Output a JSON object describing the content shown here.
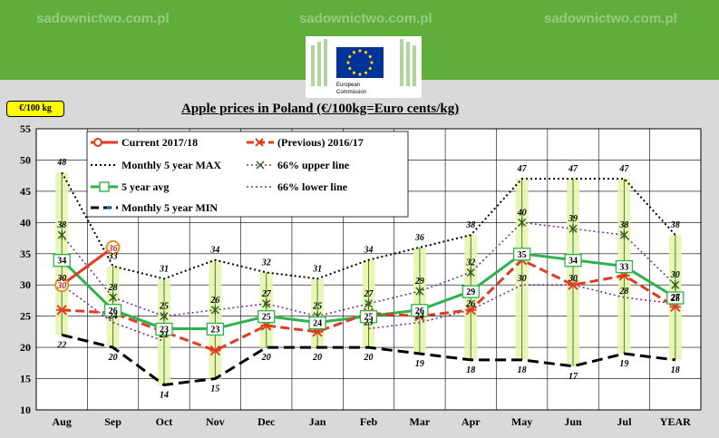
{
  "header": {
    "watermarks": [
      "sadownictwo.com.pl",
      "sadownictwo.com.pl",
      "sadownictwo.com.pl"
    ],
    "logo_text": [
      "European",
      "Commission"
    ],
    "colors": {
      "bar": "#5fae3b",
      "eu_blue": "#003399",
      "eu_star": "#ffcc00"
    }
  },
  "unit_label": "€/100 kg",
  "chart_data": {
    "type": "line",
    "title": "Apple prices in Poland (€/100kg=Euro cents/kg)",
    "categories": [
      "Aug",
      "Sep",
      "Oct",
      "Nov",
      "Dec",
      "Jan",
      "Feb",
      "Mar",
      "Apr",
      "May",
      "Jun",
      "Jul",
      "YEAR"
    ],
    "ylim": [
      10,
      55
    ],
    "yticks": [
      10,
      15,
      20,
      25,
      30,
      35,
      40,
      45,
      50,
      55
    ],
    "grid": true,
    "legend_position": "top-left",
    "series": [
      {
        "name": "Current 2017/18",
        "color": "#e03c22",
        "values": [
          30,
          36,
          null,
          null,
          null,
          null,
          null,
          null,
          null,
          null,
          null,
          null,
          null
        ],
        "labels": [
          "30",
          "36"
        ]
      },
      {
        "name": "(Previous) 2016/17",
        "color": "#e03c22",
        "values": [
          26,
          25.5,
          22.5,
          19.5,
          23.5,
          22.5,
          25.5,
          25,
          26,
          34,
          30,
          31.5,
          26.5
        ]
      },
      {
        "name": "Monthly 5 year MAX",
        "color": "#000000",
        "values": [
          48,
          33,
          31,
          34,
          32,
          31,
          34,
          36,
          38,
          47,
          47,
          47,
          38
        ],
        "labels": [
          "48",
          "33",
          "31",
          "34",
          "32",
          "31",
          "34",
          "36",
          "38",
          "47",
          "47",
          "47",
          "38"
        ]
      },
      {
        "name": "66% upper line",
        "color": "#7030a0",
        "values": [
          38,
          28,
          25,
          26,
          27,
          25,
          27,
          29,
          32,
          40,
          39,
          38,
          30
        ],
        "labels": [
          "38",
          "28",
          "25",
          "26",
          "27",
          "25",
          "27",
          "29",
          "32",
          "40",
          "39",
          "38",
          "30"
        ]
      },
      {
        "name": "5 year avg",
        "color": "#2db34a",
        "values": [
          34,
          26,
          23,
          23,
          25,
          24,
          25,
          26,
          29,
          35,
          34,
          33,
          28
        ],
        "labels": [
          "34",
          "26",
          "23",
          "23",
          "25",
          "24",
          "25",
          "26",
          "29",
          "35",
          "34",
          "33",
          "28"
        ]
      },
      {
        "name": "66% lower line",
        "color": "#7030a0",
        "values": [
          30,
          24,
          21,
          null,
          null,
          null,
          23,
          24,
          26,
          30,
          30,
          28,
          27
        ],
        "labels": [
          "30",
          "24",
          "21",
          "",
          "",
          "",
          "23",
          "24",
          "26",
          "30",
          "30",
          "28",
          "27"
        ]
      },
      {
        "name": "Monthly 5 year MIN",
        "color": "#000000",
        "values": [
          22,
          20,
          14,
          15,
          20,
          20,
          20,
          19,
          18,
          18,
          17,
          19,
          18
        ],
        "labels": [
          "22",
          "20",
          "14",
          "15",
          "20",
          "20",
          "20",
          "19",
          "18",
          "18",
          "17",
          "19",
          "18"
        ]
      }
    ]
  }
}
